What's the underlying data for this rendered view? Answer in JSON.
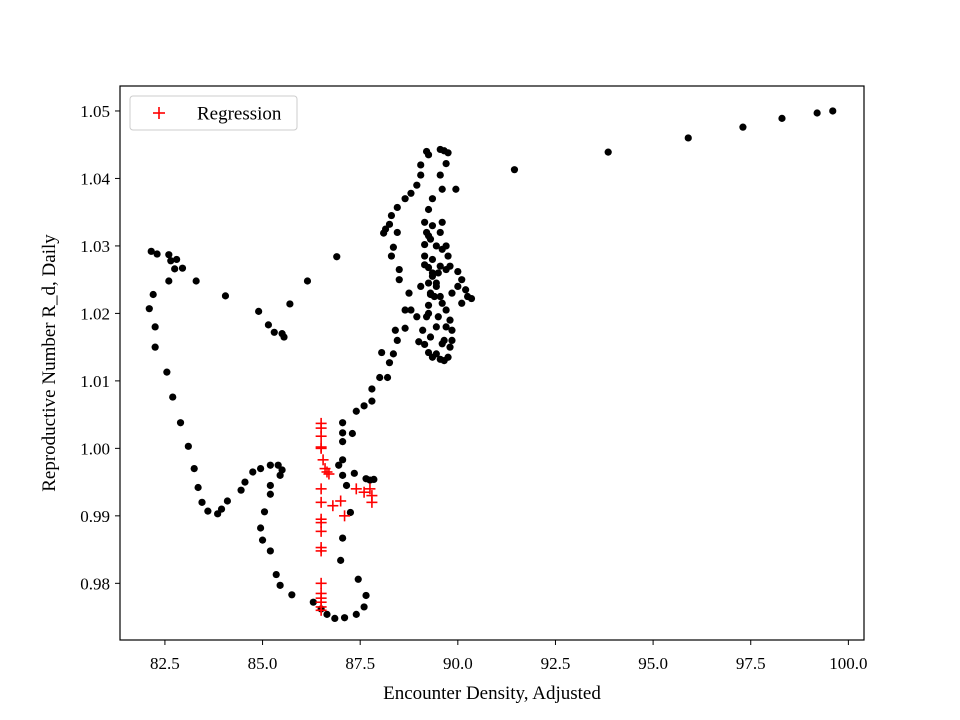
{
  "chart_data": {
    "type": "scatter",
    "title": "",
    "xlabel": "Encounter Density, Adjusted",
    "ylabel": "Reproductive Number R_d, Daily",
    "xlim": [
      81.35,
      100.4
    ],
    "ylim": [
      0.9716,
      1.0537
    ],
    "x_ticks": [
      82.5,
      85.0,
      87.5,
      90.0,
      92.5,
      95.0,
      97.5,
      100.0
    ],
    "x_tick_labels": [
      "82.5",
      "85.0",
      "87.5",
      "90.0",
      "92.5",
      "95.0",
      "97.5",
      "100.0"
    ],
    "y_ticks": [
      0.98,
      0.99,
      1.0,
      1.01,
      1.02,
      1.03,
      1.04,
      1.05
    ],
    "y_tick_labels": [
      "0.98",
      "0.99",
      "1.00",
      "1.01",
      "1.02",
      "1.03",
      "1.04",
      "1.05"
    ],
    "grid": false,
    "legend": {
      "position": "top-left",
      "entries": [
        "Regression"
      ]
    },
    "series": [
      {
        "marker": "circle",
        "color": "#000000",
        "points": [
          [
            82.15,
            1.0292
          ],
          [
            82.3,
            1.0288
          ],
          [
            82.6,
            1.0287
          ],
          [
            82.65,
            1.0278
          ],
          [
            82.8,
            1.028
          ],
          [
            82.75,
            1.0266
          ],
          [
            82.95,
            1.0267
          ],
          [
            82.6,
            1.0248
          ],
          [
            82.2,
            1.0228
          ],
          [
            82.1,
            1.0207
          ],
          [
            82.25,
            1.018
          ],
          [
            82.25,
            1.015
          ],
          [
            82.55,
            1.0113
          ],
          [
            82.7,
            1.0076
          ],
          [
            82.9,
            1.0038
          ],
          [
            83.1,
            1.0003
          ],
          [
            83.25,
            0.997
          ],
          [
            83.35,
            0.9942
          ],
          [
            83.45,
            0.992
          ],
          [
            83.6,
            0.9907
          ],
          [
            83.85,
            0.9903
          ],
          [
            83.95,
            0.991
          ],
          [
            84.1,
            0.9922
          ],
          [
            84.45,
            0.9938
          ],
          [
            84.55,
            0.995
          ],
          [
            84.75,
            0.9965
          ],
          [
            84.95,
            0.997
          ],
          [
            85.2,
            0.9975
          ],
          [
            85.4,
            0.9975
          ],
          [
            85.5,
            0.9968
          ],
          [
            85.45,
            0.996
          ],
          [
            85.2,
            0.9945
          ],
          [
            85.2,
            0.9932
          ],
          [
            85.05,
            0.9906
          ],
          [
            84.95,
            0.9882
          ],
          [
            85.0,
            0.9864
          ],
          [
            85.2,
            0.9848
          ],
          [
            85.35,
            0.9813
          ],
          [
            85.45,
            0.9797
          ],
          [
            85.75,
            0.9783
          ],
          [
            86.3,
            0.9772
          ],
          [
            86.5,
            0.9762
          ],
          [
            86.65,
            0.9754
          ],
          [
            86.85,
            0.9748
          ],
          [
            87.1,
            0.9749
          ],
          [
            87.4,
            0.9754
          ],
          [
            87.6,
            0.9765
          ],
          [
            87.65,
            0.9782
          ],
          [
            87.45,
            0.9806
          ],
          [
            87.0,
            0.9834
          ],
          [
            87.05,
            0.9867
          ],
          [
            87.25,
            0.9905
          ],
          [
            87.15,
            0.9945
          ],
          [
            87.05,
            0.996
          ],
          [
            86.95,
            0.9975
          ],
          [
            87.05,
            0.9983
          ],
          [
            87.35,
            0.9963
          ],
          [
            87.65,
            0.9955
          ],
          [
            87.75,
            0.9953
          ],
          [
            87.85,
            0.9954
          ],
          [
            87.05,
            1.001
          ],
          [
            87.05,
            1.0023
          ],
          [
            87.05,
            1.0038
          ],
          [
            87.3,
            1.0022
          ],
          [
            87.4,
            1.0055
          ],
          [
            87.6,
            1.0063
          ],
          [
            87.8,
            1.007
          ],
          [
            87.8,
            1.0088
          ],
          [
            88.0,
            1.0105
          ],
          [
            88.2,
            1.0105
          ],
          [
            88.25,
            1.0127
          ],
          [
            88.05,
            1.0142
          ],
          [
            88.35,
            1.014
          ],
          [
            88.45,
            1.016
          ],
          [
            88.4,
            1.0175
          ],
          [
            88.65,
            1.0178
          ],
          [
            88.8,
            1.0205
          ],
          [
            88.65,
            1.0205
          ],
          [
            88.75,
            1.023
          ],
          [
            88.5,
            1.025
          ],
          [
            88.5,
            1.0265
          ],
          [
            88.3,
            1.0285
          ],
          [
            88.35,
            1.0298
          ],
          [
            88.1,
            1.0319
          ],
          [
            88.15,
            1.0325
          ],
          [
            88.25,
            1.0332
          ],
          [
            88.3,
            1.0345
          ],
          [
            88.45,
            1.0357
          ],
          [
            88.65,
            1.037
          ],
          [
            88.8,
            1.0378
          ],
          [
            88.95,
            1.039
          ],
          [
            89.05,
            1.0405
          ],
          [
            89.05,
            1.042
          ],
          [
            89.25,
            1.0435
          ],
          [
            89.2,
            1.044
          ],
          [
            89.55,
            1.0443
          ],
          [
            89.65,
            1.0441
          ],
          [
            89.75,
            1.0438
          ],
          [
            89.7,
            1.0422
          ],
          [
            89.55,
            1.0405
          ],
          [
            89.6,
            1.0384
          ],
          [
            89.95,
            1.0384
          ],
          [
            89.35,
            1.037
          ],
          [
            89.25,
            1.0354
          ],
          [
            89.35,
            1.033
          ],
          [
            89.25,
            1.0315
          ],
          [
            89.15,
            1.0302
          ],
          [
            89.15,
            1.0285
          ],
          [
            89.25,
            1.0268
          ],
          [
            89.35,
            1.0255
          ],
          [
            89.45,
            1.0245
          ],
          [
            89.3,
            1.023
          ],
          [
            89.25,
            1.0212
          ],
          [
            89.2,
            1.0195
          ],
          [
            89.1,
            1.0175
          ],
          [
            89.15,
            1.0154
          ],
          [
            89.25,
            1.0142
          ],
          [
            89.45,
            1.014
          ],
          [
            89.55,
            1.0132
          ],
          [
            89.65,
            1.013
          ],
          [
            89.75,
            1.0135
          ],
          [
            89.8,
            1.015
          ],
          [
            89.85,
            1.016
          ],
          [
            89.85,
            1.0175
          ],
          [
            89.8,
            1.019
          ],
          [
            89.7,
            1.0205
          ],
          [
            89.6,
            1.0215
          ],
          [
            89.55,
            1.0225
          ],
          [
            89.45,
            1.024
          ],
          [
            89.35,
            1.026
          ],
          [
            89.35,
            1.028
          ],
          [
            89.45,
            1.03
          ],
          [
            89.55,
            1.032
          ],
          [
            89.6,
            1.0335
          ],
          [
            89.7,
            1.03
          ],
          [
            89.75,
            1.0285
          ],
          [
            89.7,
            1.0265
          ],
          [
            90.0,
            1.0262
          ],
          [
            90.1,
            1.025
          ],
          [
            90.2,
            1.0235
          ],
          [
            90.25,
            1.0225
          ],
          [
            90.35,
            1.0222
          ],
          [
            90.1,
            1.0215
          ],
          [
            89.05,
            1.024
          ],
          [
            89.2,
            1.032
          ],
          [
            89.3,
            1.031
          ],
          [
            89.15,
            1.0272
          ],
          [
            89.3,
            1.0165
          ],
          [
            89.45,
            1.018
          ],
          [
            89.25,
            1.02
          ],
          [
            89.55,
            1.027
          ],
          [
            89.7,
            1.018
          ],
          [
            89.65,
            1.016
          ],
          [
            89.4,
            1.0225
          ],
          [
            89.5,
            1.0195
          ],
          [
            89.6,
            1.0295
          ],
          [
            88.45,
            1.032
          ],
          [
            89.0,
            1.0158
          ],
          [
            89.35,
            1.0135
          ],
          [
            89.3,
            1.0228
          ],
          [
            89.15,
            1.0335
          ],
          [
            89.6,
            1.0155
          ],
          [
            89.25,
            1.0245
          ],
          [
            89.5,
            1.026
          ],
          [
            90.0,
            1.024
          ],
          [
            89.85,
            1.023
          ],
          [
            89.8,
            1.027
          ],
          [
            88.95,
            1.0195
          ],
          [
            86.9,
            1.0284
          ],
          [
            86.15,
            1.0248
          ],
          [
            85.7,
            1.0214
          ],
          [
            85.5,
            1.017
          ],
          [
            85.55,
            1.0165
          ],
          [
            85.3,
            1.0172
          ],
          [
            85.15,
            1.0183
          ],
          [
            84.9,
            1.0203
          ],
          [
            84.05,
            1.0226
          ],
          [
            83.3,
            1.0248
          ],
          [
            91.45,
            1.0413
          ],
          [
            93.85,
            1.0439
          ],
          [
            95.9,
            1.046
          ],
          [
            97.3,
            1.0476
          ],
          [
            98.3,
            1.0489
          ],
          [
            99.2,
            1.0497
          ],
          [
            99.6,
            1.05
          ]
        ]
      },
      {
        "name": "Regression",
        "marker": "plus",
        "color": "#ff0000",
        "points": [
          [
            86.5,
            1.0037
          ],
          [
            86.5,
            1.003
          ],
          [
            86.5,
            1.0018
          ],
          [
            86.5,
            1.0002
          ],
          [
            86.5,
            1.0
          ],
          [
            86.55,
            0.9983
          ],
          [
            86.6,
            0.997
          ],
          [
            86.65,
            0.9965
          ],
          [
            86.7,
            0.9962
          ],
          [
            86.5,
            0.994
          ],
          [
            86.5,
            0.992
          ],
          [
            86.5,
            0.9895
          ],
          [
            86.5,
            0.989
          ],
          [
            86.5,
            0.9877
          ],
          [
            86.5,
            0.9853
          ],
          [
            86.5,
            0.9848
          ],
          [
            86.5,
            0.98
          ],
          [
            86.5,
            0.9785
          ],
          [
            86.5,
            0.9778
          ],
          [
            86.5,
            0.9772
          ],
          [
            86.5,
            0.9765
          ],
          [
            86.5,
            0.976
          ],
          [
            86.8,
            0.9915
          ],
          [
            87.0,
            0.9922
          ],
          [
            87.1,
            0.99
          ],
          [
            87.4,
            0.994
          ],
          [
            87.6,
            0.9935
          ],
          [
            87.75,
            0.994
          ],
          [
            87.8,
            0.993
          ],
          [
            87.8,
            0.992
          ]
        ]
      }
    ]
  }
}
